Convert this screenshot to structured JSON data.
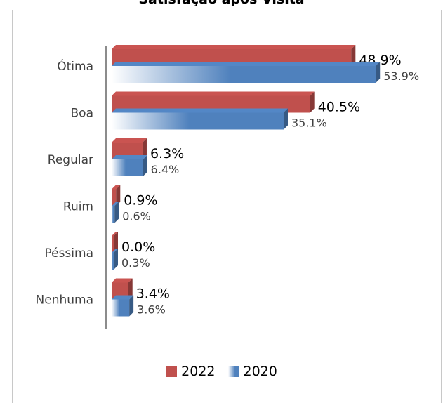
{
  "chart_data": {
    "type": "bar",
    "orientation": "horizontal",
    "title": "Satisfação após Visita",
    "categories": [
      "Ótima",
      "Boa",
      "Regular",
      "Ruim",
      "Péssima",
      "Nenhuma"
    ],
    "series": [
      {
        "name": "2022",
        "values": [
          48.9,
          40.5,
          6.3,
          0.9,
          0.0,
          3.4
        ],
        "labels": [
          "48.9%",
          "40.5%",
          "6.3%",
          "0.9%",
          "0.0%",
          "3.4%"
        ],
        "color": "#c0504d"
      },
      {
        "name": "2020",
        "values": [
          53.9,
          35.1,
          6.4,
          0.6,
          0.3,
          3.6
        ],
        "labels": [
          "53.9%",
          "35.1%",
          "6.4%",
          "0.6%",
          "0.3%",
          "3.6%"
        ],
        "color": "#4f81bd"
      }
    ],
    "xlim": [
      0,
      60
    ],
    "grid": false,
    "legend": "bottom"
  }
}
